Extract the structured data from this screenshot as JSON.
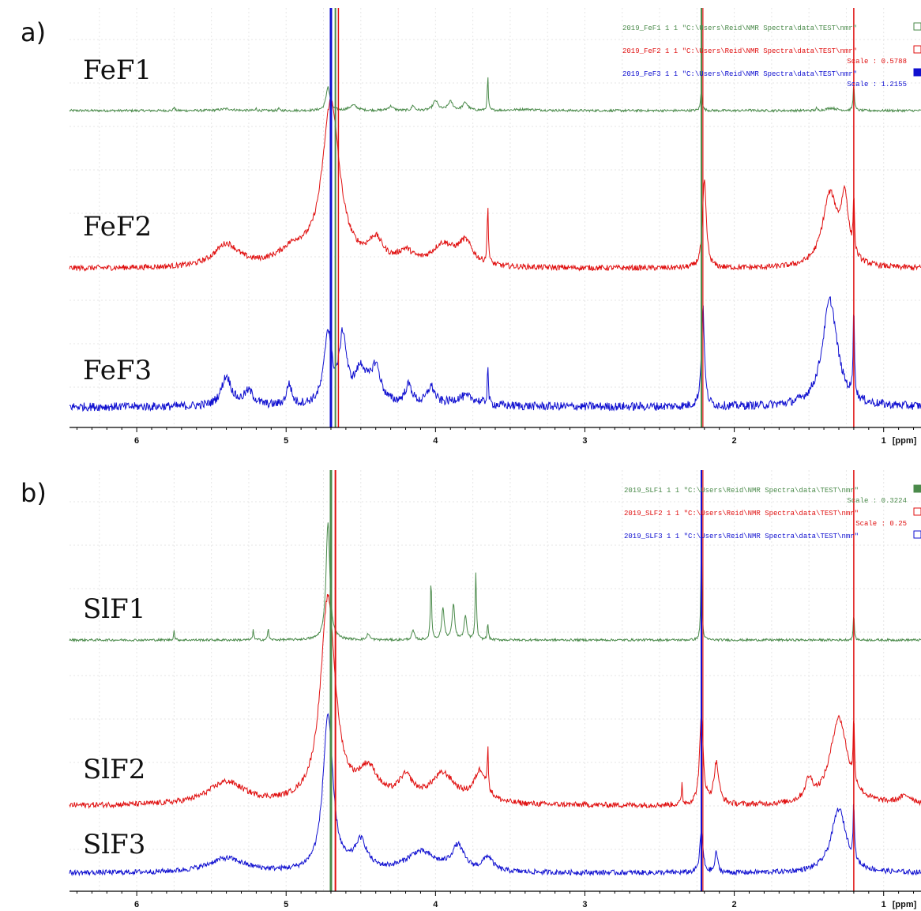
{
  "panels": {
    "a": {
      "letter": "a)"
    },
    "b": {
      "letter": "b)"
    }
  },
  "chart_data": [
    {
      "type": "line",
      "panel": "a",
      "x_axis": {
        "reversed": true,
        "range": [
          6.45,
          0.75
        ],
        "ticks": [
          6,
          5,
          4,
          3,
          2,
          1
        ],
        "unit": "[ppm]"
      },
      "grid": true,
      "colors": {
        "FeF1": "#4a8a4a",
        "FeF2": "#e01010",
        "FeF3": "#1010d0"
      },
      "series": [
        {
          "name": "FeF1",
          "legend_file": "2019_FeF1",
          "legend_nums": "1  1",
          "legend_path": "\"C:\\Users\\Reid\\NMR Spectra\\data\\TEST\\nmr\"",
          "legend_scale": "",
          "baseline": 0.0,
          "noise": 0.015,
          "peaks": [
            {
              "x": 5.75,
              "h": 0.1,
              "w": 0.004
            },
            {
              "x": 5.4,
              "h": 0.04,
              "w": 0.05
            },
            {
              "x": 5.2,
              "h": 0.05,
              "w": 0.004
            },
            {
              "x": 5.05,
              "h": 0.06,
              "w": 0.004
            },
            {
              "x": 4.72,
              "h": 0.55,
              "w": 0.015
            },
            {
              "x": 4.55,
              "h": 0.12,
              "w": 0.03
            },
            {
              "x": 4.3,
              "h": 0.1,
              "w": 0.02
            },
            {
              "x": 4.15,
              "h": 0.12,
              "w": 0.01
            },
            {
              "x": 4.0,
              "h": 0.22,
              "w": 0.02
            },
            {
              "x": 3.9,
              "h": 0.2,
              "w": 0.02
            },
            {
              "x": 3.8,
              "h": 0.18,
              "w": 0.02
            },
            {
              "x": 3.65,
              "h": 0.8,
              "w": 0.004
            },
            {
              "x": 3.4,
              "h": 0.03,
              "w": 0.1
            },
            {
              "x": 2.22,
              "h": 0.5,
              "w": 0.006
            },
            {
              "x": 1.9,
              "h": 0.04,
              "w": 0.004
            },
            {
              "x": 1.45,
              "h": 0.05,
              "w": 0.004
            },
            {
              "x": 1.35,
              "h": 0.06,
              "w": 0.04
            },
            {
              "x": 1.2,
              "h": 0.6,
              "w": 0.005
            }
          ]
        },
        {
          "name": "FeF2",
          "legend_file": "2019_FeF2",
          "legend_nums": "1  1",
          "legend_path": "\"C:\\Users\\Reid\\NMR Spectra\\data\\TEST\\nmr\"",
          "legend_scale": "Scale : 0.5788",
          "baseline": 0.0,
          "noise": 0.015,
          "peaks": [
            {
              "x": 5.4,
              "h": 0.22,
              "w": 0.1
            },
            {
              "x": 4.95,
              "h": 0.15,
              "w": 0.12
            },
            {
              "x": 4.7,
              "h": 1.6,
              "w": 0.07
            },
            {
              "x": 4.4,
              "h": 0.22,
              "w": 0.06
            },
            {
              "x": 4.2,
              "h": 0.12,
              "w": 0.06
            },
            {
              "x": 3.95,
              "h": 0.2,
              "w": 0.09
            },
            {
              "x": 3.8,
              "h": 0.22,
              "w": 0.06
            },
            {
              "x": 3.65,
              "h": 0.55,
              "w": 0.005
            },
            {
              "x": 2.2,
              "h": 0.85,
              "w": 0.015
            },
            {
              "x": 1.36,
              "h": 0.7,
              "w": 0.06
            },
            {
              "x": 1.26,
              "h": 0.6,
              "w": 0.03
            },
            {
              "x": 1.2,
              "h": 0.55,
              "w": 0.005
            }
          ]
        },
        {
          "name": "FeF3",
          "legend_file": "2019_FeF3",
          "legend_nums": "1  1",
          "legend_path": "\"C:\\Users\\Reid\\NMR Spectra\\data\\TEST\\nmr\"",
          "legend_scale": "Scale : 1.2155",
          "baseline": 0.0,
          "noise": 0.02,
          "peaks": [
            {
              "x": 5.4,
              "h": 0.25,
              "w": 0.04
            },
            {
              "x": 5.25,
              "h": 0.12,
              "w": 0.04
            },
            {
              "x": 4.98,
              "h": 0.18,
              "w": 0.02
            },
            {
              "x": 4.72,
              "h": 0.6,
              "w": 0.03
            },
            {
              "x": 4.62,
              "h": 0.55,
              "w": 0.03
            },
            {
              "x": 4.5,
              "h": 0.28,
              "w": 0.05
            },
            {
              "x": 4.4,
              "h": 0.3,
              "w": 0.04
            },
            {
              "x": 4.18,
              "h": 0.16,
              "w": 0.03
            },
            {
              "x": 4.03,
              "h": 0.15,
              "w": 0.03
            },
            {
              "x": 3.8,
              "h": 0.08,
              "w": 0.1
            },
            {
              "x": 3.65,
              "h": 0.35,
              "w": 0.004
            },
            {
              "x": 2.21,
              "h": 0.85,
              "w": 0.012
            },
            {
              "x": 1.36,
              "h": 0.9,
              "w": 0.06
            },
            {
              "x": 1.2,
              "h": 0.8,
              "w": 0.005
            }
          ]
        }
      ],
      "labels": [
        "FeF1",
        "FeF2",
        "FeF3"
      ]
    },
    {
      "type": "line",
      "panel": "b",
      "x_axis": {
        "reversed": true,
        "range": [
          6.45,
          0.75
        ],
        "ticks": [
          6,
          5,
          4,
          3,
          2,
          1
        ],
        "unit": "[ppm]"
      },
      "grid": true,
      "colors": {
        "SlF1": "#4a8a4a",
        "SlF2": "#e01010",
        "SlF3": "#1010d0"
      },
      "series": [
        {
          "name": "SlF1",
          "legend_file": "2019_SLF1",
          "legend_nums": "1  1",
          "legend_path": "\"C:\\Users\\Reid\\NMR Spectra\\data\\TEST\\nmr\"",
          "legend_scale": "Scale : 0.3224",
          "baseline": 0.0,
          "noise": 0.008,
          "peaks": [
            {
              "x": 5.75,
              "h": 0.12,
              "w": 0.004
            },
            {
              "x": 5.22,
              "h": 0.14,
              "w": 0.004
            },
            {
              "x": 5.12,
              "h": 0.16,
              "w": 0.004
            },
            {
              "x": 4.72,
              "h": 1.5,
              "w": 0.015
            },
            {
              "x": 4.45,
              "h": 0.08,
              "w": 0.01
            },
            {
              "x": 4.15,
              "h": 0.12,
              "w": 0.01
            },
            {
              "x": 4.03,
              "h": 0.75,
              "w": 0.005
            },
            {
              "x": 3.95,
              "h": 0.4,
              "w": 0.01
            },
            {
              "x": 3.88,
              "h": 0.45,
              "w": 0.01
            },
            {
              "x": 3.8,
              "h": 0.3,
              "w": 0.01
            },
            {
              "x": 3.73,
              "h": 0.85,
              "w": 0.005
            },
            {
              "x": 3.65,
              "h": 0.2,
              "w": 0.005
            },
            {
              "x": 2.22,
              "h": 1.5,
              "w": 0.004
            },
            {
              "x": 1.2,
              "h": 0.35,
              "w": 0.004
            }
          ]
        },
        {
          "name": "SlF2",
          "legend_file": "2019_SLF2",
          "legend_nums": "1  1",
          "legend_path": "\"C:\\Users\\Reid\\NMR Spectra\\data\\TEST\\nmr\"",
          "legend_scale": "Scale : 0.25",
          "baseline": 0.0,
          "noise": 0.015,
          "peaks": [
            {
              "x": 5.4,
              "h": 0.22,
              "w": 0.15
            },
            {
              "x": 4.72,
              "h": 2.0,
              "w": 0.06
            },
            {
              "x": 4.45,
              "h": 0.3,
              "w": 0.08
            },
            {
              "x": 4.2,
              "h": 0.22,
              "w": 0.06
            },
            {
              "x": 3.95,
              "h": 0.28,
              "w": 0.1
            },
            {
              "x": 3.7,
              "h": 0.3,
              "w": 0.05
            },
            {
              "x": 3.65,
              "h": 0.4,
              "w": 0.004
            },
            {
              "x": 2.35,
              "h": 0.2,
              "w": 0.004
            },
            {
              "x": 2.22,
              "h": 0.85,
              "w": 0.015
            },
            {
              "x": 2.12,
              "h": 0.4,
              "w": 0.02
            },
            {
              "x": 1.5,
              "h": 0.2,
              "w": 0.03
            },
            {
              "x": 1.3,
              "h": 0.85,
              "w": 0.07
            },
            {
              "x": 1.2,
              "h": 0.6,
              "w": 0.005
            },
            {
              "x": 0.85,
              "h": 0.08,
              "w": 0.06
            }
          ]
        },
        {
          "name": "SlF3",
          "legend_file": "2019_SLF3",
          "legend_nums": "1  1",
          "legend_path": "\"C:\\Users\\Reid\\NMR Spectra\\data\\TEST\\nmr\"",
          "legend_scale": "",
          "baseline": 0.0,
          "noise": 0.02,
          "peaks": [
            {
              "x": 5.4,
              "h": 0.2,
              "w": 0.15
            },
            {
              "x": 4.72,
              "h": 2.2,
              "w": 0.04
            },
            {
              "x": 4.5,
              "h": 0.4,
              "w": 0.05
            },
            {
              "x": 4.1,
              "h": 0.28,
              "w": 0.12
            },
            {
              "x": 3.85,
              "h": 0.34,
              "w": 0.05
            },
            {
              "x": 3.65,
              "h": 0.2,
              "w": 0.04
            },
            {
              "x": 2.22,
              "h": 0.6,
              "w": 0.012
            },
            {
              "x": 2.12,
              "h": 0.3,
              "w": 0.01
            },
            {
              "x": 1.3,
              "h": 0.9,
              "w": 0.06
            },
            {
              "x": 1.2,
              "h": 0.8,
              "w": 0.005
            }
          ]
        }
      ],
      "labels": [
        "SlF1",
        "SlF2",
        "SlF3"
      ]
    }
  ]
}
